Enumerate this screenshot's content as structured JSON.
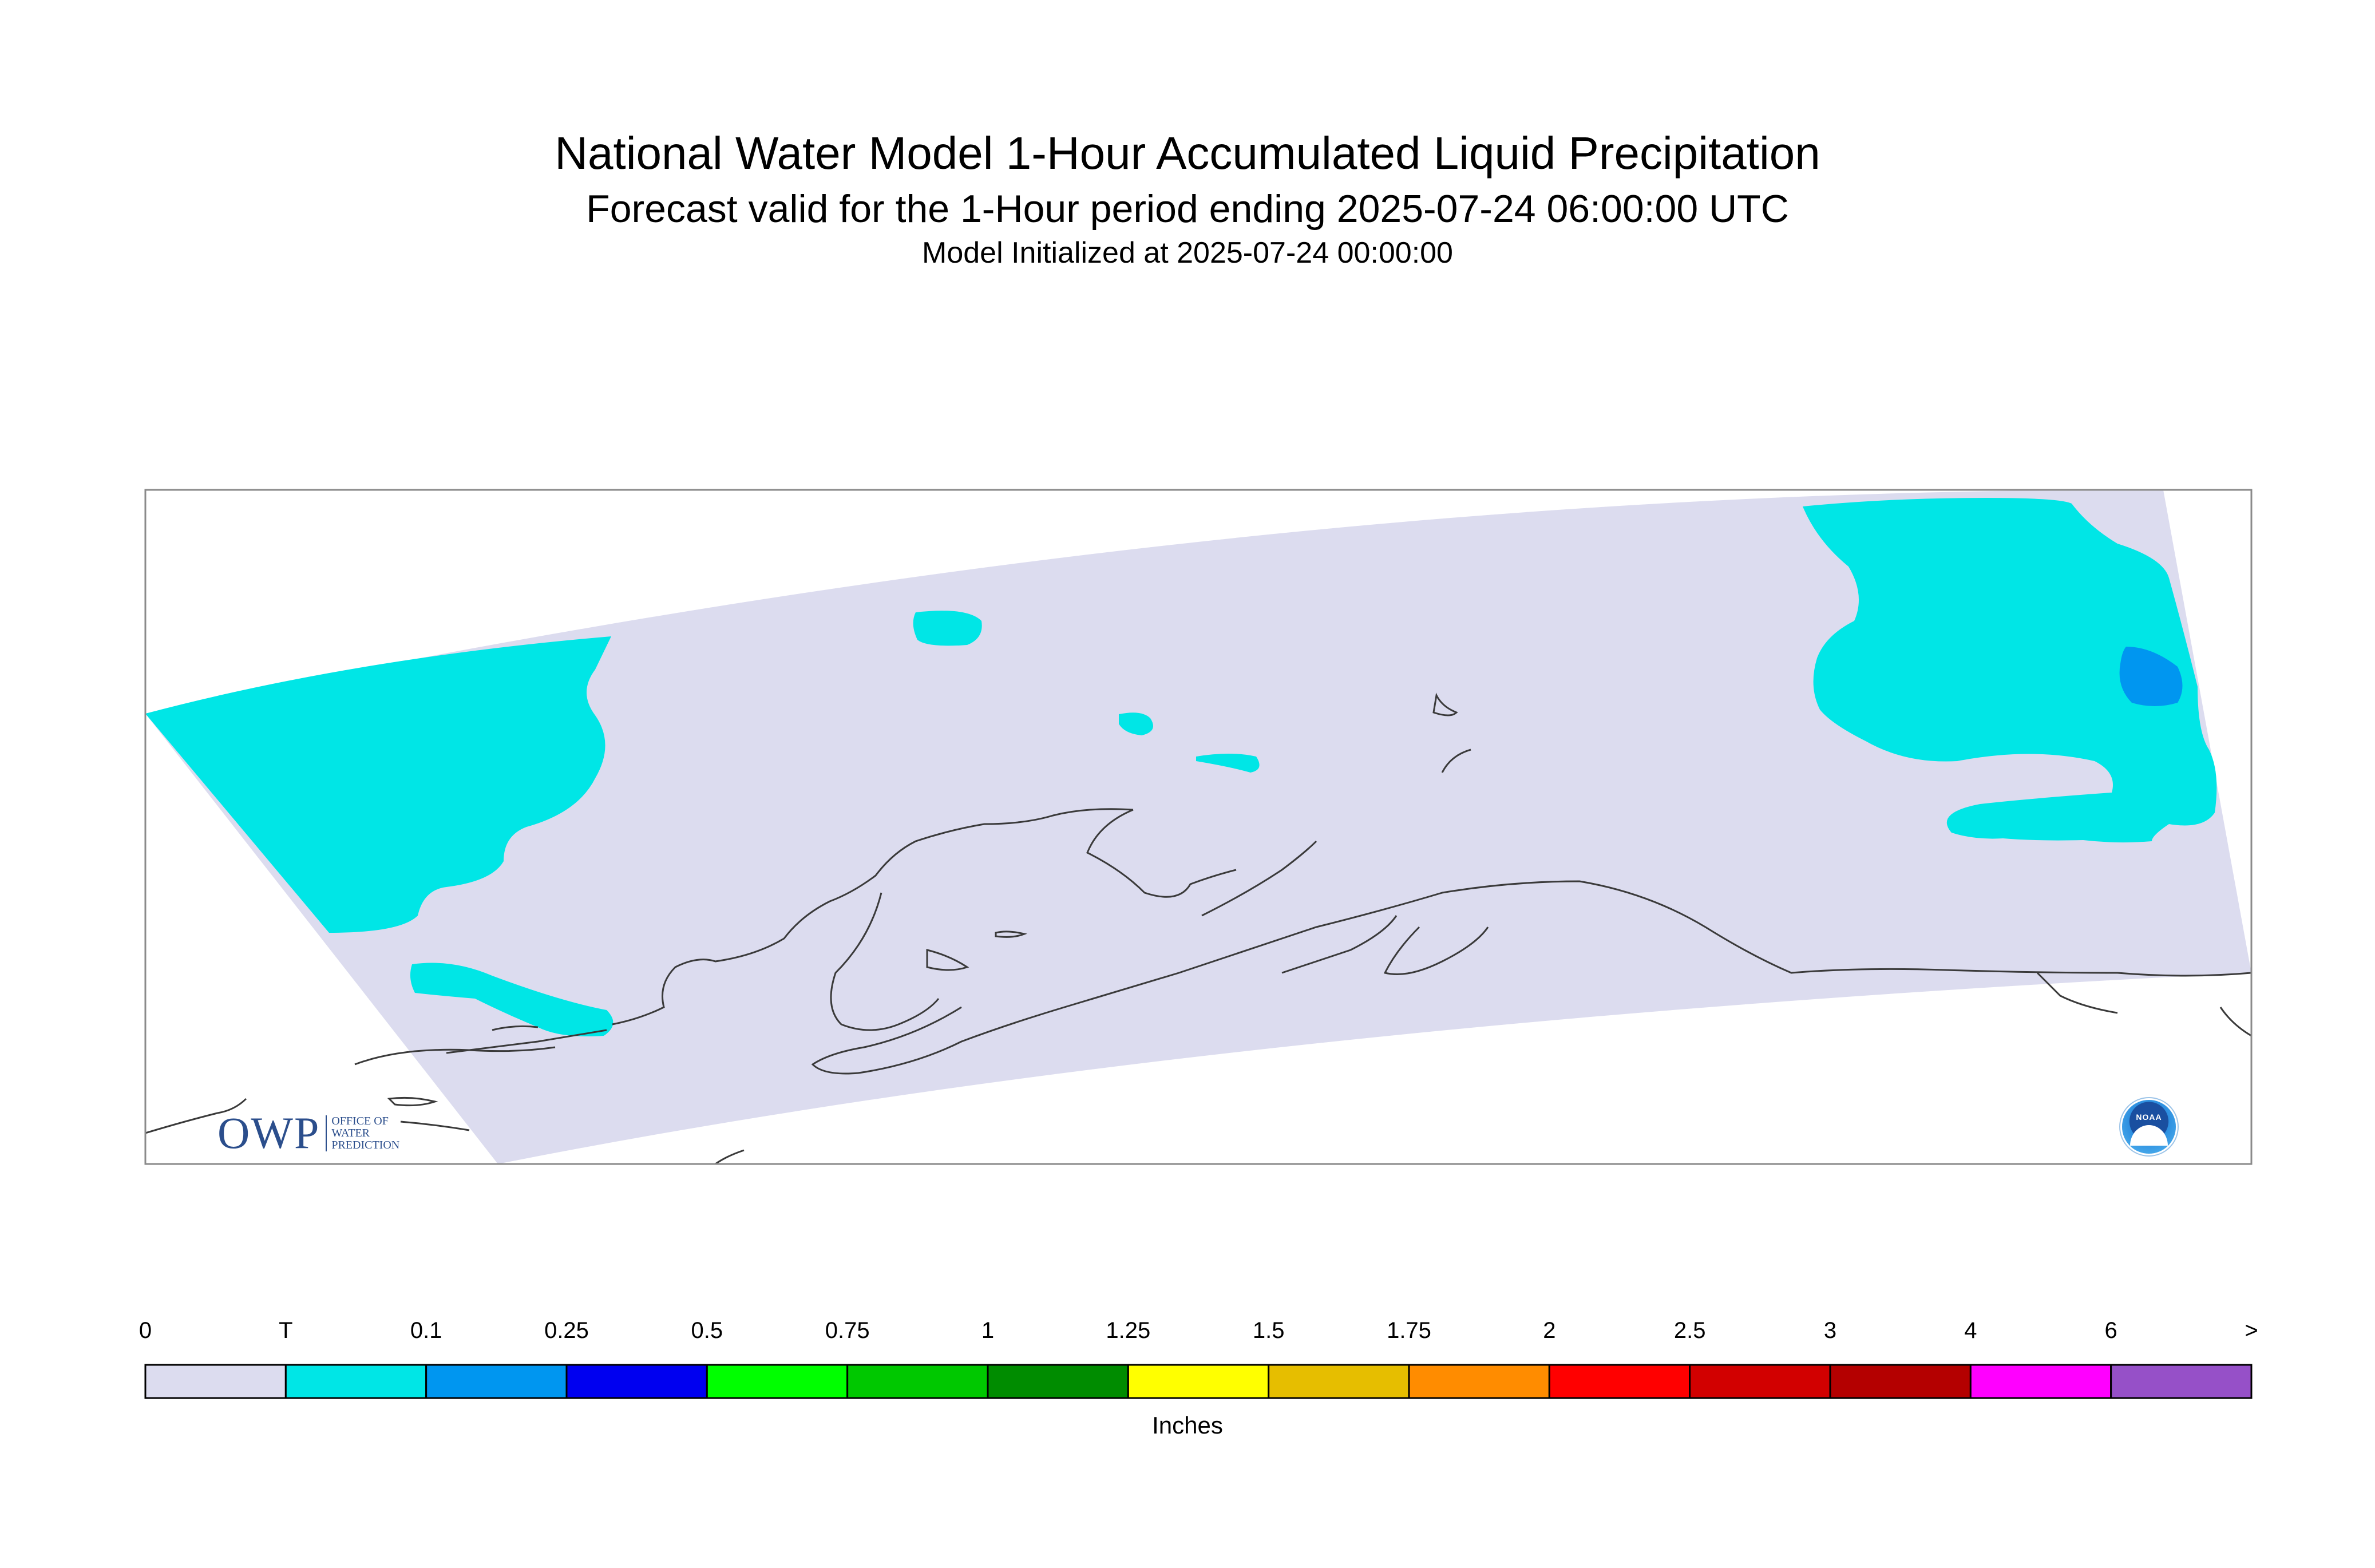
{
  "header": {
    "title": "National Water Model 1-Hour Accumulated Liquid Precipitation",
    "subtitle": "Forecast valid for the 1-Hour period ending 2025-07-24 06:00:00 UTC",
    "initialized": "Model Initialized at 2025-07-24 00:00:00"
  },
  "map": {
    "region": "Alaska",
    "precipitation_areas": [
      {
        "category": "T",
        "color": "#00e6e6"
      },
      {
        "category": "0.1",
        "color": "#0096f0"
      }
    ]
  },
  "legend": {
    "units": "Inches",
    "labels": [
      "0",
      "T",
      "0.1",
      "0.25",
      "0.5",
      "0.75",
      "1",
      "1.25",
      "1.5",
      "1.75",
      "2",
      "2.5",
      "3",
      "4",
      "6",
      ">"
    ],
    "colors": [
      "#dcdcef",
      "#00e6e6",
      "#0096f0",
      "#0000f0",
      "#00ff00",
      "#00c800",
      "#008c00",
      "#ffff00",
      "#e6be00",
      "#ff8c00",
      "#ff0000",
      "#d20000",
      "#b40000",
      "#ff00ff",
      "#9650c8"
    ]
  },
  "logos": {
    "owp_mark": "OWP",
    "owp_lines": [
      "OFFICE OF",
      "WATER",
      "PREDICTION"
    ],
    "noaa": "NOAA"
  }
}
